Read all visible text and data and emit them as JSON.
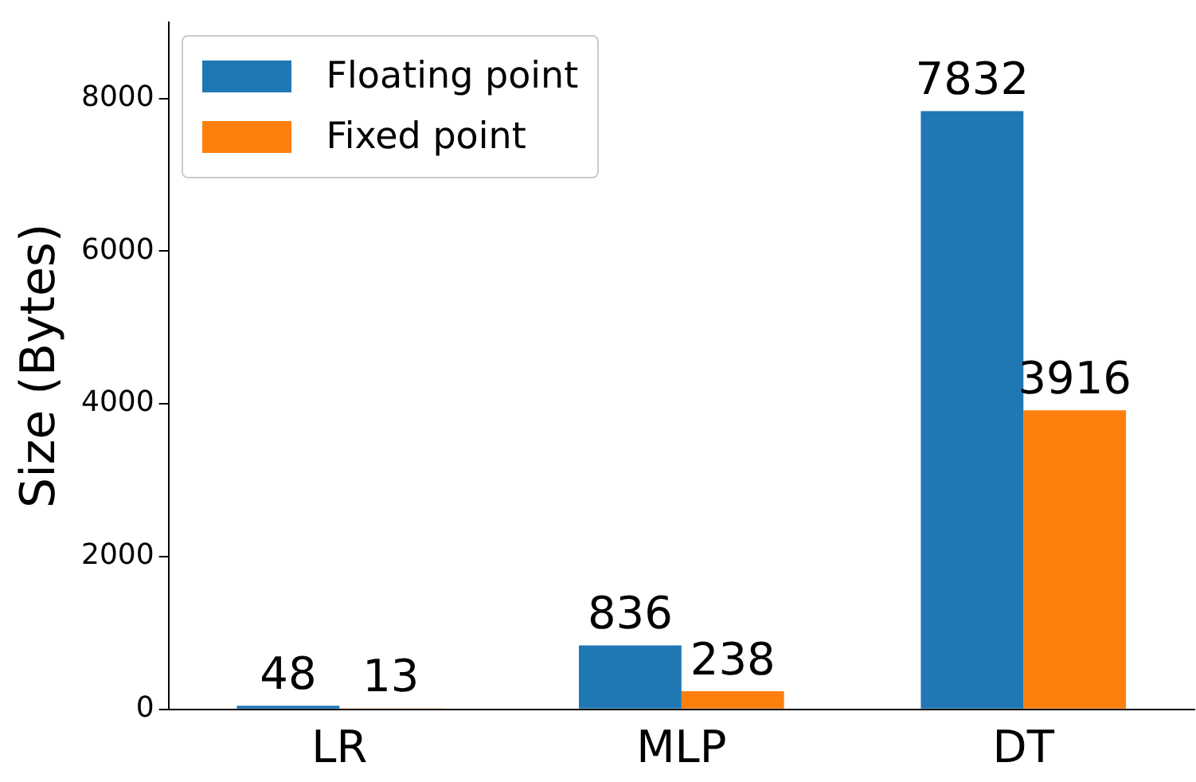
{
  "chart_data": {
    "type": "bar",
    "ylabel": "Size (Bytes)",
    "categories": [
      "LR",
      "MLP",
      "DT"
    ],
    "series": [
      {
        "name": "Floating point",
        "color": "#1f77b4",
        "values": [
          48,
          836,
          7832
        ]
      },
      {
        "name": "Fixed point",
        "color": "#ff7f0e",
        "values": [
          13,
          238,
          3916
        ]
      }
    ],
    "ylim": [
      0,
      9000
    ],
    "yticks": [
      0,
      2000,
      4000,
      6000,
      8000
    ],
    "data_labels": true,
    "legend": "top left",
    "grid": false
  }
}
